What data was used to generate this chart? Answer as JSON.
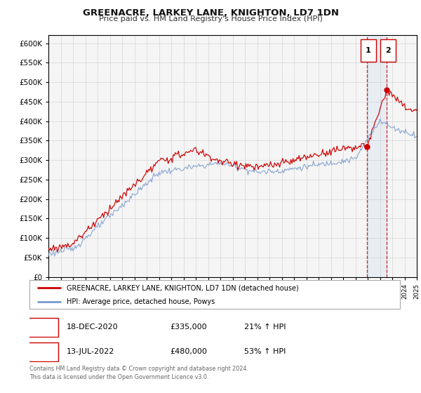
{
  "title": "GREENACRE, LARKEY LANE, KNIGHTON, LD7 1DN",
  "subtitle": "Price paid vs. HM Land Registry's House Price Index (HPI)",
  "legend_line1": "GREENACRE, LARKEY LANE, KNIGHTON, LD7 1DN (detached house)",
  "legend_line2": "HPI: Average price, detached house, Powys",
  "transaction1_date": "18-DEC-2020",
  "transaction1_price": "£335,000",
  "transaction1_hpi": "21% ↑ HPI",
  "transaction2_date": "13-JUL-2022",
  "transaction2_price": "£480,000",
  "transaction2_hpi": "53% ↑ HPI",
  "footer": "Contains HM Land Registry data © Crown copyright and database right 2024.\nThis data is licensed under the Open Government Licence v3.0.",
  "red_line_color": "#cc0000",
  "blue_line_color": "#7799cc",
  "bg_color": "#ffffff",
  "plot_bg_color": "#f5f5f5",
  "grid_color": "#cccccc",
  "ylim_min": 0,
  "ylim_max": 620000,
  "year_start": 1995,
  "year_end": 2025,
  "transaction1_year": 2020.96,
  "transaction2_year": 2022.54,
  "transaction1_value": 335000,
  "transaction2_value": 480000
}
